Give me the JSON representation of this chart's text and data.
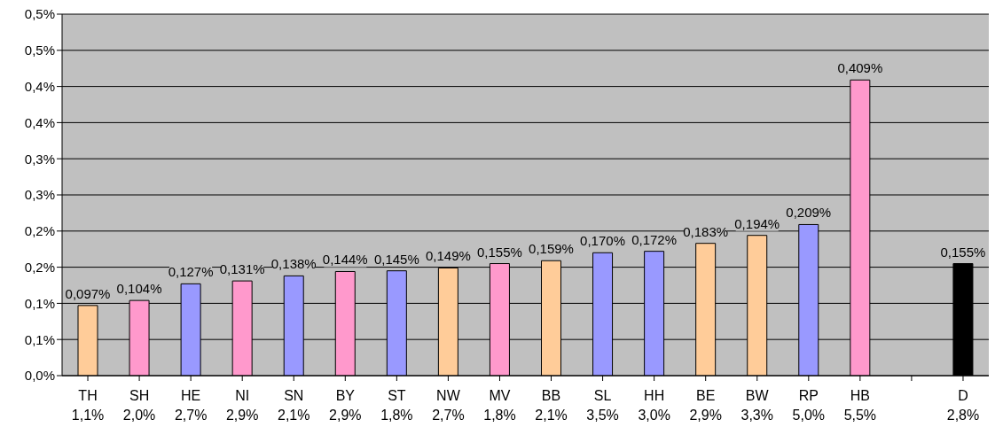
{
  "chart_data": {
    "type": "bar",
    "categories": [
      "TH\n1,1%",
      "SH\n2,0%",
      "HE\n2,7%",
      "NI\n2,9%",
      "SN\n2,1%",
      "BY\n2,9%",
      "ST\n1,8%",
      "NW\n2,7%",
      "MV\n1,8%",
      "BB\n2,1%",
      "SL\n3,5%",
      "HH\n3,0%",
      "BE\n2,9%",
      "BW\n3,3%",
      "RP\n5,0%",
      "HB\n5,5%",
      null,
      "D\n2,8%"
    ],
    "values": [
      0.097,
      0.104,
      0.127,
      0.131,
      0.138,
      0.144,
      0.145,
      0.149,
      0.155,
      0.159,
      0.17,
      0.172,
      0.183,
      0.194,
      0.209,
      0.409,
      null,
      0.155
    ],
    "value_labels": [
      "0,097%",
      "0,104%",
      "0,127%",
      "0,131%",
      "0,138%",
      "0,144%",
      "0,145%",
      "0,149%",
      "0,155%",
      "0,159%",
      "0,170%",
      "0,172%",
      "0,183%",
      "0,194%",
      "0,209%",
      "0,409%",
      null,
      "0,155%"
    ],
    "colors": [
      "#ffcc99",
      "#ff99cc",
      "#9999ff",
      "#ff99cc",
      "#9999ff",
      "#ff99cc",
      "#9999ff",
      "#ffcc99",
      "#ff99cc",
      "#ffcc99",
      "#9999ff",
      "#9999ff",
      "#ffcc99",
      "#ffcc99",
      "#9999ff",
      "#ff99cc",
      "#c0c0c0",
      "#000000"
    ],
    "ylim": [
      0,
      0.5
    ],
    "yticks": [
      {
        "value": 0,
        "label": "0,0%"
      },
      {
        "value": 0.05,
        "label": "0,1%"
      },
      {
        "value": 0.1,
        "label": "0,1%"
      },
      {
        "value": 0.15,
        "label": "0,2%"
      },
      {
        "value": 0.2,
        "label": "0,2%"
      },
      {
        "value": 0.25,
        "label": "0,3%"
      },
      {
        "value": 0.3,
        "label": "0,3%"
      },
      {
        "value": 0.35,
        "label": "0,4%"
      },
      {
        "value": 0.4,
        "label": "0,4%"
      },
      {
        "value": 0.45,
        "label": "0,5%"
      },
      {
        "value": 0.5,
        "label": "0,5%"
      }
    ],
    "grid": "y",
    "legend": false
  }
}
